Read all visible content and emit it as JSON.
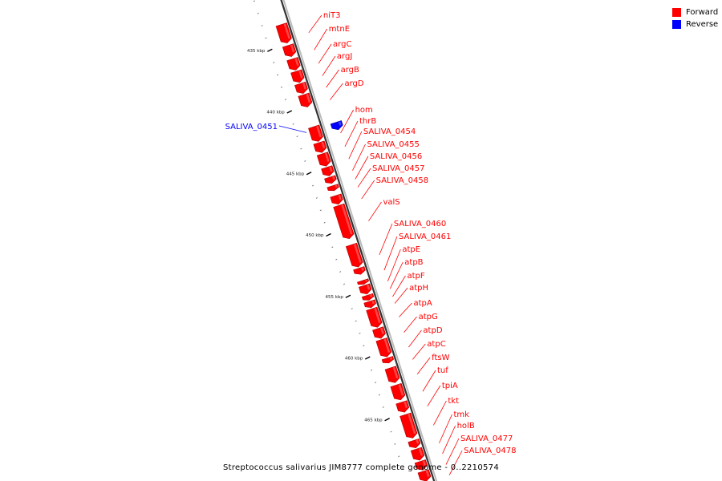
{
  "legend": [
    {
      "label": "Forward",
      "color": "#ff0000"
    },
    {
      "label": "Reverse",
      "color": "#0000ff"
    }
  ],
  "caption": "Streptococcus salivarius JIM8777 complete genome - 0..2210574",
  "ticks": [
    {
      "kbp": 435,
      "label": "435 kbp"
    },
    {
      "kbp": 440,
      "label": "440 kbp"
    },
    {
      "kbp": 445,
      "label": "445 kbp"
    },
    {
      "kbp": 450,
      "label": "450 kbp"
    },
    {
      "kbp": 455,
      "label": "455 kbp"
    },
    {
      "kbp": 460,
      "label": "460 kbp"
    },
    {
      "kbp": 465,
      "label": "465 kbp"
    }
  ],
  "forward_genes": [
    {
      "label": "niT3",
      "start": 432.3,
      "end": 433.8
    },
    {
      "label": "mtnE",
      "start": 434.0,
      "end": 434.9
    },
    {
      "label": "argC",
      "start": 435.1,
      "end": 436.0
    },
    {
      "label": "argJ",
      "start": 436.1,
      "end": 437.0
    },
    {
      "label": "argB",
      "start": 437.1,
      "end": 437.9
    },
    {
      "label": "argD",
      "start": 438.0,
      "end": 439.0
    },
    {
      "label": "hom",
      "start": 440.6,
      "end": 441.8
    },
    {
      "label": "thrB",
      "start": 441.9,
      "end": 442.7
    },
    {
      "label": "SALIVA_0454",
      "start": 442.8,
      "end": 443.8
    },
    {
      "label": "SALIVA_0455",
      "start": 443.9,
      "end": 444.6
    },
    {
      "label": "SALIVA_0456",
      "start": 444.7,
      "end": 445.2
    },
    {
      "label": "SALIVA_0457",
      "start": 445.4,
      "end": 445.8
    },
    {
      "label": "SALIVA_0458",
      "start": 446.2,
      "end": 446.9
    },
    {
      "label": "valS",
      "start": 447.0,
      "end": 449.7
    },
    {
      "label": "SALIVA_0460",
      "start": 450.2,
      "end": 452.0
    },
    {
      "label": "SALIVA_0461",
      "start": 452.1,
      "end": 452.6
    },
    {
      "label": "atpE",
      "start": 453.1,
      "end": 453.4
    },
    {
      "label": "atpB",
      "start": 453.5,
      "end": 454.2
    },
    {
      "label": "atpF",
      "start": 454.3,
      "end": 454.7
    },
    {
      "label": "atpH",
      "start": 454.8,
      "end": 455.3
    },
    {
      "label": "atpA",
      "start": 455.4,
      "end": 456.9
    },
    {
      "label": "atpG",
      "start": 457.0,
      "end": 457.8
    },
    {
      "label": "atpD",
      "start": 457.9,
      "end": 459.3
    },
    {
      "label": "atpC",
      "start": 459.4,
      "end": 459.8
    },
    {
      "label": "ftsW",
      "start": 460.2,
      "end": 461.4
    },
    {
      "label": "tuf",
      "start": 461.6,
      "end": 462.8
    },
    {
      "label": "tpiA",
      "start": 463.0,
      "end": 463.8
    },
    {
      "label": "tkt",
      "start": 464.0,
      "end": 465.9
    },
    {
      "label": "tmk",
      "start": 466.1,
      "end": 466.7
    },
    {
      "label": "holB",
      "start": 466.8,
      "end": 467.7
    },
    {
      "label": "SALIVA_0477",
      "start": 467.8,
      "end": 468.5
    },
    {
      "label": "SALIVA_0478",
      "start": 468.6,
      "end": 469.4
    }
  ],
  "reverse_genes": [
    {
      "label": "SALIVA_0451",
      "start": 440.8,
      "end": 441.4
    }
  ]
}
